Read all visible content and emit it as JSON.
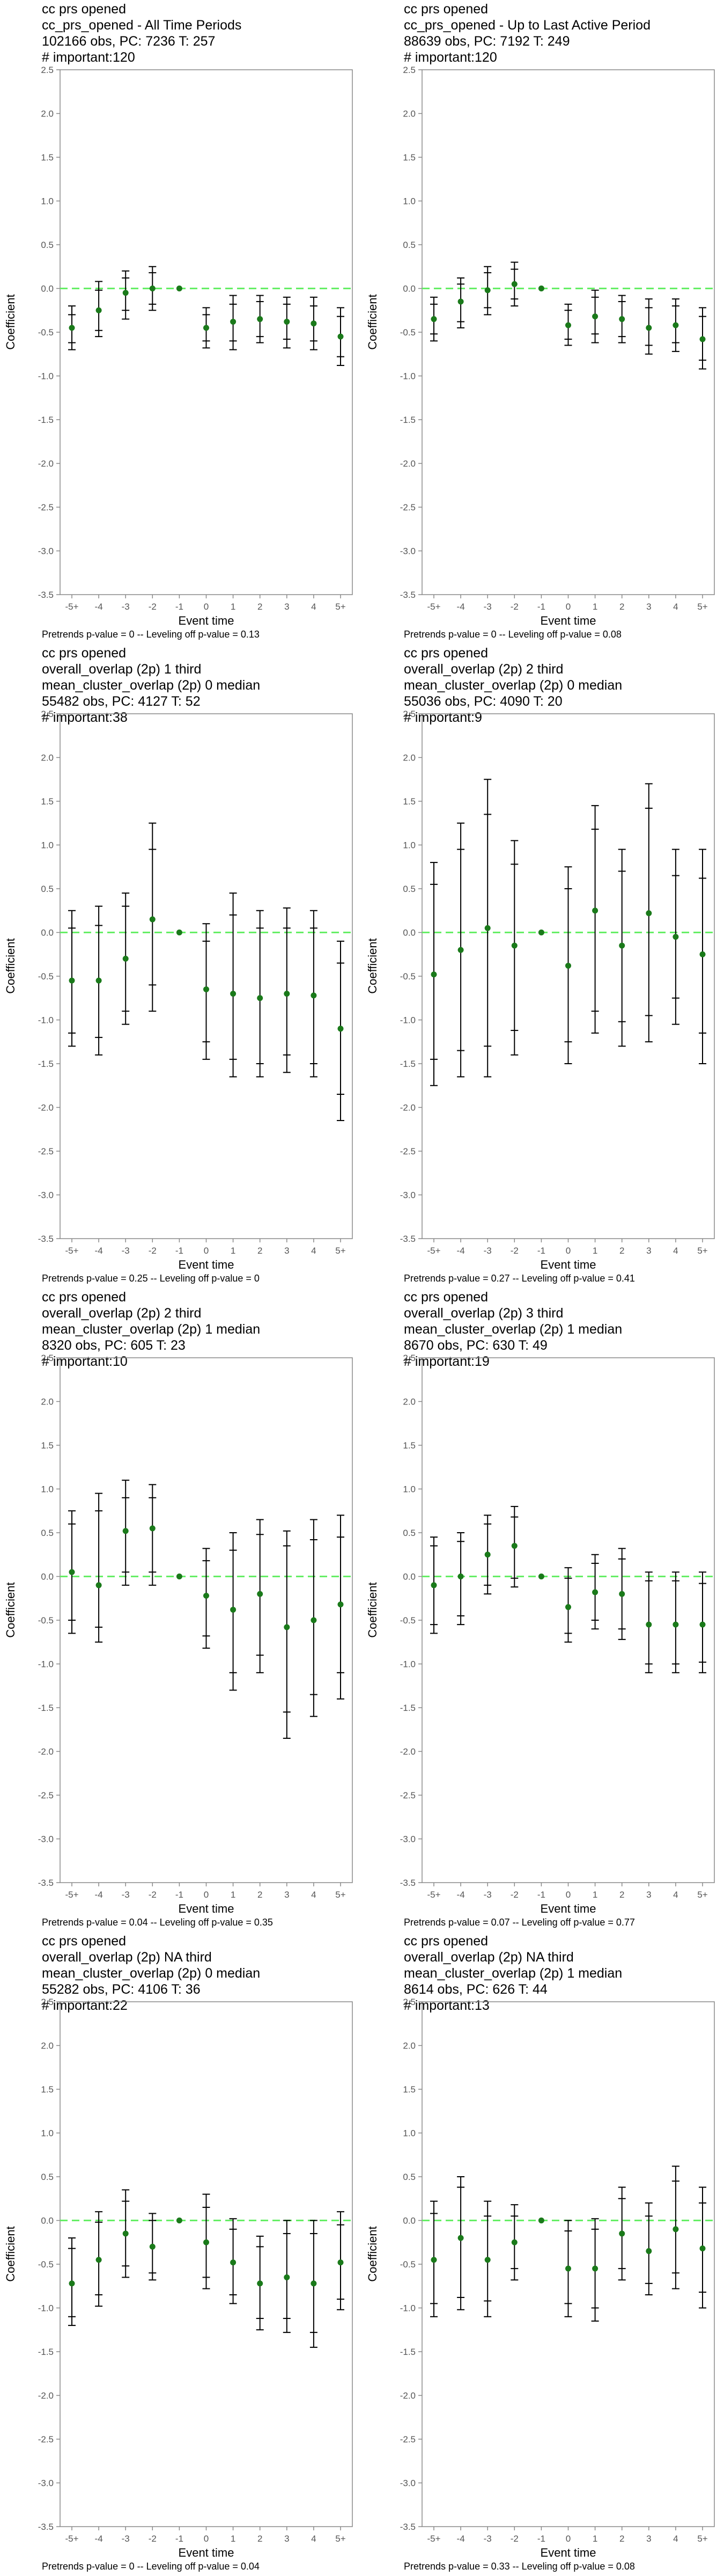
{
  "axis": {
    "xlabel": "Event time",
    "ylabel": "Coefficient",
    "x_ticks": [
      "-5+",
      "-4",
      "-3",
      "-2",
      "-1",
      "0",
      "1",
      "2",
      "3",
      "4",
      "5+"
    ],
    "y_ticks": [
      "2.5",
      "2.0",
      "1.5",
      "1.0",
      "0.5",
      "0.0",
      "-0.5",
      "-1.0",
      "-1.5",
      "-2.0",
      "-2.5",
      "-3.0",
      "-3.5"
    ],
    "ylim": [
      -3.5,
      2.5
    ]
  },
  "colors": {
    "point": "#1a7a1a",
    "interval": "#000000",
    "zero_line": "#66ee66",
    "frame": "#888888"
  },
  "chart_data": [
    {
      "type": "scatter",
      "title_lines": [
        "cc prs opened",
        "cc_prs_opened - All Time Periods",
        "102166 obs, PC: 7236 T: 257",
        "# important:120"
      ],
      "footnote": "Pretrends p-value = 0 -- Leveling off p-value = 0.13",
      "x": [
        "-5+",
        "-4",
        "-3",
        "-2",
        "-1",
        "0",
        "1",
        "2",
        "3",
        "4",
        "5+"
      ],
      "estimate": [
        -0.45,
        -0.25,
        -0.05,
        0.0,
        0.0,
        -0.45,
        -0.38,
        -0.35,
        -0.38,
        -0.4,
        -0.55
      ],
      "ci95": [
        [
          -0.7,
          -0.2
        ],
        [
          -0.55,
          0.08
        ],
        [
          -0.35,
          0.2
        ],
        [
          -0.25,
          0.25
        ],
        null,
        [
          -0.68,
          -0.22
        ],
        [
          -0.7,
          -0.08
        ],
        [
          -0.62,
          -0.08
        ],
        [
          -0.68,
          -0.1
        ],
        [
          -0.7,
          -0.1
        ],
        [
          -0.88,
          -0.22
        ]
      ],
      "ci90": [
        [
          -0.62,
          -0.3
        ],
        [
          -0.48,
          -0.02
        ],
        [
          -0.25,
          0.12
        ],
        [
          -0.18,
          0.18
        ],
        null,
        [
          -0.6,
          -0.3
        ],
        [
          -0.6,
          -0.18
        ],
        [
          -0.55,
          -0.15
        ],
        [
          -0.58,
          -0.18
        ],
        [
          -0.6,
          -0.2
        ],
        [
          -0.78,
          -0.32
        ]
      ]
    },
    {
      "type": "scatter",
      "title_lines": [
        "cc prs opened",
        "cc_prs_opened - Up to Last Active Period",
        "88639 obs, PC: 7192 T: 249",
        "# important:120"
      ],
      "footnote": "Pretrends p-value = 0 -- Leveling off p-value = 0.08",
      "x": [
        "-5+",
        "-4",
        "-3",
        "-2",
        "-1",
        "0",
        "1",
        "2",
        "3",
        "4",
        "5+"
      ],
      "estimate": [
        -0.35,
        -0.15,
        -0.02,
        0.05,
        0.0,
        -0.42,
        -0.32,
        -0.35,
        -0.45,
        -0.42,
        -0.58
      ],
      "ci95": [
        [
          -0.6,
          -0.1
        ],
        [
          -0.45,
          0.12
        ],
        [
          -0.3,
          0.25
        ],
        [
          -0.2,
          0.3
        ],
        null,
        [
          -0.65,
          -0.18
        ],
        [
          -0.62,
          -0.02
        ],
        [
          -0.62,
          -0.08
        ],
        [
          -0.75,
          -0.12
        ],
        [
          -0.72,
          -0.12
        ],
        [
          -0.92,
          -0.22
        ]
      ],
      "ci90": [
        [
          -0.52,
          -0.18
        ],
        [
          -0.38,
          0.05
        ],
        [
          -0.22,
          0.18
        ],
        [
          -0.12,
          0.22
        ],
        null,
        [
          -0.58,
          -0.25
        ],
        [
          -0.52,
          -0.1
        ],
        [
          -0.55,
          -0.15
        ],
        [
          -0.65,
          -0.22
        ],
        [
          -0.62,
          -0.2
        ],
        [
          -0.82,
          -0.32
        ]
      ]
    },
    {
      "type": "scatter",
      "title_lines": [
        "cc prs opened",
        "overall_overlap (2p) 1 third",
        "mean_cluster_overlap (2p) 0 median",
        "55482 obs, PC: 4127 T: 52",
        "# important:38"
      ],
      "footnote": "Pretrends p-value = 0.25 -- Leveling off p-value = 0",
      "x": [
        "-5+",
        "-4",
        "-3",
        "-2",
        "-1",
        "0",
        "1",
        "2",
        "3",
        "4",
        "5+"
      ],
      "estimate": [
        -0.55,
        -0.55,
        -0.3,
        0.15,
        0.0,
        -0.65,
        -0.7,
        -0.75,
        -0.7,
        -0.72,
        -1.1
      ],
      "ci95": [
        [
          -1.3,
          0.25
        ],
        [
          -1.4,
          0.3
        ],
        [
          -1.05,
          0.45
        ],
        [
          -0.9,
          1.25
        ],
        null,
        [
          -1.45,
          0.1
        ],
        [
          -1.65,
          0.45
        ],
        [
          -1.65,
          0.25
        ],
        [
          -1.6,
          0.28
        ],
        [
          -1.65,
          0.25
        ],
        [
          -2.15,
          -0.1
        ]
      ],
      "ci90": [
        [
          -1.15,
          0.05
        ],
        [
          -1.2,
          0.08
        ],
        [
          -0.9,
          0.3
        ],
        [
          -0.6,
          0.95
        ],
        null,
        [
          -1.25,
          -0.1
        ],
        [
          -1.45,
          0.2
        ],
        [
          -1.5,
          0.05
        ],
        [
          -1.4,
          0.05
        ],
        [
          -1.5,
          0.05
        ],
        [
          -1.85,
          -0.35
        ]
      ]
    },
    {
      "type": "scatter",
      "title_lines": [
        "cc prs opened",
        "overall_overlap (2p) 2 third",
        "mean_cluster_overlap (2p) 0 median",
        "55036 obs, PC: 4090 T: 20",
        "# important:9"
      ],
      "footnote": "Pretrends p-value = 0.27 -- Leveling off p-value = 0.41",
      "x": [
        "-5+",
        "-4",
        "-3",
        "-2",
        "-1",
        "0",
        "1",
        "2",
        "3",
        "4",
        "5+"
      ],
      "estimate": [
        -0.48,
        -0.2,
        0.05,
        -0.15,
        0.0,
        -0.38,
        0.25,
        -0.15,
        0.22,
        -0.05,
        -0.25
      ],
      "ci95": [
        [
          -1.75,
          0.8
        ],
        [
          -1.65,
          1.25
        ],
        [
          -1.65,
          1.75
        ],
        [
          -1.4,
          1.05
        ],
        null,
        [
          -1.5,
          0.75
        ],
        [
          -1.15,
          1.45
        ],
        [
          -1.3,
          0.95
        ],
        [
          -1.25,
          1.7
        ],
        [
          -1.05,
          0.95
        ],
        [
          -1.5,
          0.95
        ]
      ],
      "ci90": [
        [
          -1.45,
          0.55
        ],
        [
          -1.35,
          0.95
        ],
        [
          -1.3,
          1.35
        ],
        [
          -1.12,
          0.78
        ],
        null,
        [
          -1.25,
          0.5
        ],
        [
          -0.9,
          1.18
        ],
        [
          -1.02,
          0.7
        ],
        [
          -0.95,
          1.42
        ],
        [
          -0.75,
          0.65
        ],
        [
          -1.15,
          0.62
        ]
      ]
    },
    {
      "type": "scatter",
      "title_lines": [
        "cc prs opened",
        "overall_overlap (2p) 2 third",
        "mean_cluster_overlap (2p) 1 median",
        "8320 obs, PC: 605 T: 23",
        "# important:10"
      ],
      "footnote": "Pretrends p-value = 0.04 -- Leveling off p-value = 0.35",
      "x": [
        "-5+",
        "-4",
        "-3",
        "-2",
        "-1",
        "0",
        "1",
        "2",
        "3",
        "4",
        "5+"
      ],
      "estimate": [
        0.05,
        -0.1,
        0.52,
        0.55,
        0.0,
        -0.22,
        -0.38,
        -0.2,
        -0.58,
        -0.5,
        -0.32
      ],
      "ci95": [
        [
          -0.65,
          0.75
        ],
        [
          -0.75,
          0.95
        ],
        [
          -0.1,
          1.1
        ],
        [
          -0.1,
          1.05
        ],
        null,
        [
          -0.82,
          0.32
        ],
        [
          -1.3,
          0.5
        ],
        [
          -1.1,
          0.65
        ],
        [
          -1.85,
          0.52
        ],
        [
          -1.6,
          0.65
        ],
        [
          -1.4,
          0.7
        ]
      ],
      "ci90": [
        [
          -0.5,
          0.6
        ],
        [
          -0.58,
          0.75
        ],
        [
          0.05,
          0.9
        ],
        [
          0.05,
          0.9
        ],
        null,
        [
          -0.68,
          0.18
        ],
        [
          -1.1,
          0.3
        ],
        [
          -0.9,
          0.48
        ],
        [
          -1.55,
          0.35
        ],
        [
          -1.35,
          0.42
        ],
        [
          -1.1,
          0.45
        ]
      ]
    },
    {
      "type": "scatter",
      "title_lines": [
        "cc prs opened",
        "overall_overlap (2p) 3 third",
        "mean_cluster_overlap (2p) 1 median",
        "8670 obs, PC: 630 T: 49",
        "# important:19"
      ],
      "footnote": "Pretrends p-value = 0.07 -- Leveling off p-value = 0.77",
      "x": [
        "-5+",
        "-4",
        "-3",
        "-2",
        "-1",
        "0",
        "1",
        "2",
        "3",
        "4",
        "5+"
      ],
      "estimate": [
        -0.1,
        0.0,
        0.25,
        0.35,
        0.0,
        -0.35,
        -0.18,
        -0.2,
        -0.55,
        -0.55,
        -0.55
      ],
      "ci95": [
        [
          -0.65,
          0.45
        ],
        [
          -0.55,
          0.5
        ],
        [
          -0.2,
          0.7
        ],
        [
          -0.12,
          0.8
        ],
        null,
        [
          -0.75,
          0.1
        ],
        [
          -0.6,
          0.25
        ],
        [
          -0.72,
          0.32
        ],
        [
          -1.1,
          0.05
        ],
        [
          -1.1,
          0.05
        ],
        [
          -1.1,
          0.05
        ]
      ],
      "ci90": [
        [
          -0.55,
          0.35
        ],
        [
          -0.45,
          0.4
        ],
        [
          -0.1,
          0.6
        ],
        [
          -0.02,
          0.68
        ],
        null,
        [
          -0.65,
          -0.02
        ],
        [
          -0.5,
          0.15
        ],
        [
          -0.6,
          0.2
        ],
        [
          -1.0,
          -0.05
        ],
        [
          -1.0,
          -0.05
        ],
        [
          -0.98,
          -0.08
        ]
      ]
    },
    {
      "type": "scatter",
      "title_lines": [
        "cc prs opened",
        "overall_overlap (2p) NA third",
        "mean_cluster_overlap (2p) 0 median",
        "55282 obs, PC: 4106 T: 36",
        "# important:22"
      ],
      "footnote": "Pretrends p-value = 0 -- Leveling off p-value = 0.04",
      "x": [
        "-5+",
        "-4",
        "-3",
        "-2",
        "-1",
        "0",
        "1",
        "2",
        "3",
        "4",
        "5+"
      ],
      "estimate": [
        -0.72,
        -0.45,
        -0.15,
        -0.3,
        0.0,
        -0.25,
        -0.48,
        -0.72,
        -0.65,
        -0.72,
        -0.48
      ],
      "ci95": [
        [
          -1.2,
          -0.2
        ],
        [
          -0.98,
          0.1
        ],
        [
          -0.65,
          0.35
        ],
        [
          -0.68,
          0.08
        ],
        null,
        [
          -0.78,
          0.3
        ],
        [
          -0.95,
          0.02
        ],
        [
          -1.25,
          -0.18
        ],
        [
          -1.28,
          0.0
        ],
        [
          -1.45,
          0.0
        ],
        [
          -1.02,
          0.1
        ]
      ],
      "ci90": [
        [
          -1.1,
          -0.32
        ],
        [
          -0.85,
          -0.02
        ],
        [
          -0.52,
          0.22
        ],
        [
          -0.6,
          0.0
        ],
        null,
        [
          -0.65,
          0.15
        ],
        [
          -0.85,
          -0.1
        ],
        [
          -1.12,
          -0.3
        ],
        [
          -1.12,
          -0.15
        ],
        [
          -1.28,
          -0.15
        ],
        [
          -0.9,
          -0.05
        ]
      ]
    },
    {
      "type": "scatter",
      "title_lines": [
        "cc prs opened",
        "overall_overlap (2p) NA third",
        "mean_cluster_overlap (2p) 1 median",
        "8614 obs, PC: 626 T: 44",
        "# important:13"
      ],
      "footnote": "Pretrends p-value = 0.33 -- Leveling off p-value = 0.08",
      "x": [
        "-5+",
        "-4",
        "-3",
        "-2",
        "-1",
        "0",
        "1",
        "2",
        "3",
        "4",
        "5+"
      ],
      "estimate": [
        -0.45,
        -0.2,
        -0.45,
        -0.25,
        0.0,
        -0.55,
        -0.55,
        -0.15,
        -0.35,
        -0.1,
        -0.32
      ],
      "ci95": [
        [
          -1.1,
          0.22
        ],
        [
          -1.02,
          0.5
        ],
        [
          -1.1,
          0.22
        ],
        [
          -0.68,
          0.18
        ],
        null,
        [
          -1.1,
          0.0
        ],
        [
          -1.15,
          0.02
        ],
        [
          -0.68,
          0.38
        ],
        [
          -0.85,
          0.2
        ],
        [
          -0.78,
          0.62
        ],
        [
          -1.0,
          0.38
        ]
      ],
      "ci90": [
        [
          -0.95,
          0.08
        ],
        [
          -0.88,
          0.38
        ],
        [
          -0.92,
          0.05
        ],
        [
          -0.55,
          0.05
        ],
        null,
        [
          -0.95,
          -0.12
        ],
        [
          -1.0,
          -0.1
        ],
        [
          -0.55,
          0.25
        ],
        [
          -0.72,
          0.05
        ],
        [
          -0.6,
          0.45
        ],
        [
          -0.82,
          0.2
        ]
      ]
    }
  ]
}
